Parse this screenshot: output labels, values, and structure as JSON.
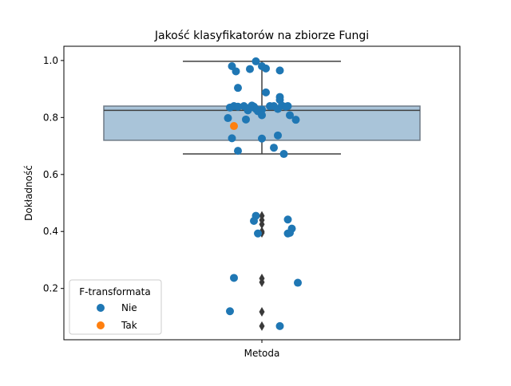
{
  "chart_data": {
    "type": "box-strip",
    "title": "Jakość klasyfikatorów na zbiorze Fungi",
    "xlabel": "",
    "ylabel": "Dokładność",
    "categories": [
      "Metoda"
    ],
    "ylim": [
      0.02,
      1.05
    ],
    "yticks": [
      0.2,
      0.4,
      0.6,
      0.8,
      1.0
    ],
    "ytick_labels": [
      "0.2",
      "0.4",
      "0.6",
      "0.8",
      "1.0"
    ],
    "grid": false,
    "box": {
      "q1": 0.72,
      "median": 0.825,
      "q3": 0.84,
      "whisker_low": 0.672,
      "whisker_high": 0.997,
      "outliers": [
        0.455,
        0.44,
        0.425,
        0.4,
        0.395,
        0.235,
        0.222,
        0.118,
        0.068
      ],
      "color": "#A9C4D9"
    },
    "legend": {
      "title": "F-transformata",
      "position": "lower-left",
      "entries": [
        {
          "label": "Nie",
          "color": "#1F77B4"
        },
        {
          "label": "Tak",
          "color": "#FF7F0E"
        }
      ]
    },
    "series": [
      {
        "name": "Nie",
        "color": "#1F77B4",
        "points": [
          {
            "x": -0.15,
            "y": 0.98
          },
          {
            "x": -0.13,
            "y": 0.962
          },
          {
            "x": -0.03,
            "y": 0.997
          },
          {
            "x": -0.06,
            "y": 0.97
          },
          {
            "x": 0.0,
            "y": 0.98
          },
          {
            "x": 0.02,
            "y": 0.972
          },
          {
            "x": 0.09,
            "y": 0.965
          },
          {
            "x": -0.12,
            "y": 0.904
          },
          {
            "x": 0.02,
            "y": 0.888
          },
          {
            "x": 0.09,
            "y": 0.872
          },
          {
            "x": 0.09,
            "y": 0.862
          },
          {
            "x": -0.16,
            "y": 0.835
          },
          {
            "x": -0.14,
            "y": 0.84
          },
          {
            "x": -0.12,
            "y": 0.838
          },
          {
            "x": -0.09,
            "y": 0.84
          },
          {
            "x": -0.07,
            "y": 0.825
          },
          {
            "x": -0.05,
            "y": 0.842
          },
          {
            "x": -0.04,
            "y": 0.838
          },
          {
            "x": -0.03,
            "y": 0.83
          },
          {
            "x": -0.02,
            "y": 0.822
          },
          {
            "x": 0.0,
            "y": 0.828
          },
          {
            "x": 0.04,
            "y": 0.84
          },
          {
            "x": 0.06,
            "y": 0.84
          },
          {
            "x": 0.08,
            "y": 0.83
          },
          {
            "x": 0.1,
            "y": 0.842
          },
          {
            "x": 0.13,
            "y": 0.84
          },
          {
            "x": 0.12,
            "y": 0.838
          },
          {
            "x": -0.06,
            "y": 0.835
          },
          {
            "x": 0.0,
            "y": 0.808
          },
          {
            "x": -0.17,
            "y": 0.798
          },
          {
            "x": -0.08,
            "y": 0.793
          },
          {
            "x": 0.14,
            "y": 0.808
          },
          {
            "x": 0.17,
            "y": 0.792
          },
          {
            "x": -0.15,
            "y": 0.727
          },
          {
            "x": 0.0,
            "y": 0.726
          },
          {
            "x": 0.08,
            "y": 0.737
          },
          {
            "x": -0.12,
            "y": 0.683
          },
          {
            "x": 0.06,
            "y": 0.694
          },
          {
            "x": 0.11,
            "y": 0.672
          },
          {
            "x": -0.03,
            "y": 0.455
          },
          {
            "x": -0.04,
            "y": 0.437
          },
          {
            "x": 0.13,
            "y": 0.442
          },
          {
            "x": 0.15,
            "y": 0.41
          },
          {
            "x": 0.13,
            "y": 0.393
          },
          {
            "x": 0.14,
            "y": 0.395
          },
          {
            "x": -0.02,
            "y": 0.393
          },
          {
            "x": -0.14,
            "y": 0.237
          },
          {
            "x": 0.18,
            "y": 0.22
          },
          {
            "x": -0.16,
            "y": 0.12
          },
          {
            "x": 0.09,
            "y": 0.068
          }
        ]
      },
      {
        "name": "Tak",
        "color": "#FF7F0E",
        "points": [
          {
            "x": -0.14,
            "y": 0.77
          }
        ]
      }
    ]
  }
}
